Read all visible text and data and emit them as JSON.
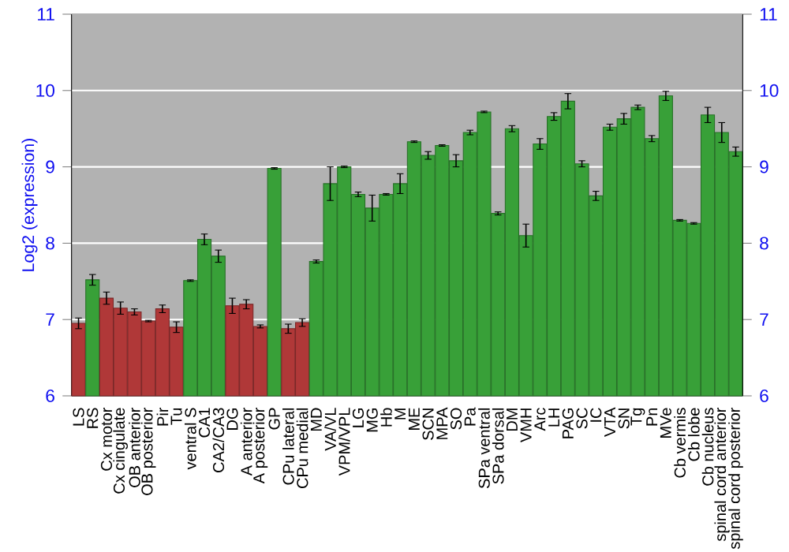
{
  "chart_data": {
    "type": "bar",
    "ylabel": "Log2 (expression)",
    "categories": [
      "LS",
      "RS",
      "Cx motor",
      "Cx cingulate",
      "OB anterior",
      "OB posterior",
      "Pir",
      "Tu",
      "ventral S",
      "CA1",
      "CA2/CA3",
      "DG",
      "A anterior",
      "A posterior",
      "GP",
      "CPu lateral",
      "CPu medial",
      "MD",
      "VA/VL",
      "VPM/VPL",
      "LG",
      "MG",
      "Hb",
      "M",
      "ME",
      "SCN",
      "MPA",
      "SO",
      "Pa",
      "SPa ventral",
      "SPa dorsal",
      "DM",
      "VMH",
      "Arc",
      "LH",
      "PAG",
      "SC",
      "IC",
      "VTA",
      "SN",
      "Tg",
      "Pn",
      "MVe",
      "Cb vermis",
      "Cb lobe",
      "Cb nucleus",
      "spinal cord anterior",
      "spinal cord posterior"
    ],
    "values": [
      6.95,
      7.52,
      7.28,
      7.15,
      7.1,
      6.98,
      7.14,
      6.9,
      7.51,
      8.05,
      7.83,
      7.18,
      7.2,
      6.91,
      8.98,
      6.88,
      6.96,
      7.76,
      8.78,
      9.0,
      8.64,
      8.46,
      8.64,
      8.78,
      9.33,
      9.15,
      9.28,
      9.08,
      9.45,
      9.72,
      8.39,
      9.5,
      8.1,
      9.3,
      9.66,
      9.86,
      9.04,
      8.62,
      9.52,
      9.63,
      9.78,
      9.37,
      9.93,
      8.3,
      8.26,
      9.68,
      9.45,
      9.2
    ],
    "errors": [
      0.07,
      0.07,
      0.08,
      0.08,
      0.04,
      0.01,
      0.05,
      0.07,
      0.01,
      0.07,
      0.08,
      0.1,
      0.06,
      0.02,
      0.01,
      0.06,
      0.05,
      0.02,
      0.22,
      0.01,
      0.03,
      0.17,
      0.01,
      0.13,
      0.01,
      0.05,
      0.01,
      0.08,
      0.03,
      0.01,
      0.02,
      0.04,
      0.15,
      0.07,
      0.05,
      0.1,
      0.04,
      0.06,
      0.04,
      0.07,
      0.03,
      0.04,
      0.06,
      0.01,
      0.01,
      0.1,
      0.13,
      0.06
    ],
    "colors": [
      "#b03838",
      "#38a038",
      "#b03838",
      "#b03838",
      "#b03838",
      "#b03838",
      "#b03838",
      "#b03838",
      "#38a038",
      "#38a038",
      "#38a038",
      "#b03838",
      "#b03838",
      "#b03838",
      "#38a038",
      "#b03838",
      "#b03838",
      "#38a038",
      "#38a038",
      "#38a038",
      "#38a038",
      "#38a038",
      "#38a038",
      "#38a038",
      "#38a038",
      "#38a038",
      "#38a038",
      "#38a038",
      "#38a038",
      "#38a038",
      "#38a038",
      "#38a038",
      "#38a038",
      "#38a038",
      "#38a038",
      "#38a038",
      "#38a038",
      "#38a038",
      "#38a038",
      "#38a038",
      "#38a038",
      "#38a038",
      "#38a038",
      "#38a038",
      "#38a038",
      "#38a038",
      "#38a038",
      "#38a038"
    ],
    "ylim": [
      6,
      11
    ],
    "yticks": [
      6,
      7,
      8,
      9,
      10,
      11
    ],
    "y2lim": [
      6,
      11
    ],
    "y2ticks": [
      6,
      7,
      8,
      9,
      10,
      11
    ],
    "grid": "y"
  }
}
